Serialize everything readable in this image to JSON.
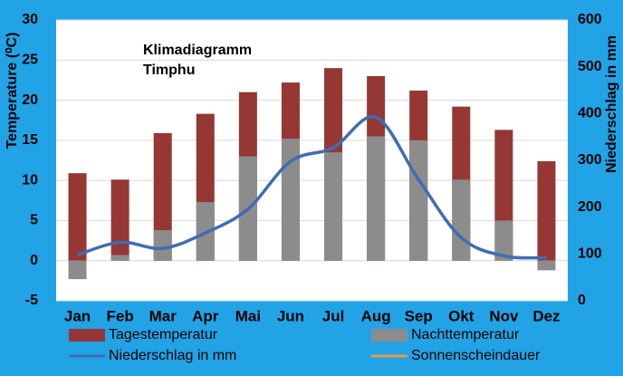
{
  "chart_data": {
    "type": "bar",
    "title": "Klimadiagramm",
    "subtitle": "Timphu",
    "ylabel": "Temperature (⁰C)",
    "y2label": "Niederschlag in mm",
    "categories": [
      "Jan",
      "Feb",
      "Mar",
      "Apr",
      "Mai",
      "Jun",
      "Jul",
      "Aug",
      "Sep",
      "Okt",
      "Nov",
      "Dez"
    ],
    "ylim": [
      -5,
      30
    ],
    "yticks": [
      -5,
      0,
      5,
      10,
      15,
      20,
      25,
      30
    ],
    "y2lim": [
      0,
      600
    ],
    "y2ticks": [
      0,
      100,
      200,
      300,
      400,
      500,
      600
    ],
    "grid": true,
    "series": [
      {
        "name": "Tagestemperatur",
        "type": "bar",
        "color": "#953735",
        "values": [
          10.9,
          10.1,
          15.9,
          18.3,
          21,
          22.2,
          24,
          23,
          21.2,
          19.2,
          16.3,
          12.4
        ]
      },
      {
        "name": "Nachttemperatur",
        "type": "bar",
        "color": "#8c8c8c",
        "values": [
          -2.3,
          0.7,
          3.8,
          7.3,
          13,
          15.2,
          13.5,
          15.5,
          15,
          10.1,
          5,
          -1.2
        ]
      },
      {
        "name": "Niederschlag in mm",
        "type": "line",
        "axis": "y2",
        "color": "#3e6db3",
        "values": [
          98,
          125,
          112,
          145,
          196,
          298,
          327,
          392,
          259,
          135,
          96,
          92
        ]
      },
      {
        "name": "Sonnenscheindauer",
        "type": "line",
        "axis": "y2",
        "color": "#e59b47",
        "values": [
          null,
          null,
          null,
          null,
          null,
          null,
          null,
          null,
          null,
          null,
          null,
          null
        ]
      }
    ]
  }
}
